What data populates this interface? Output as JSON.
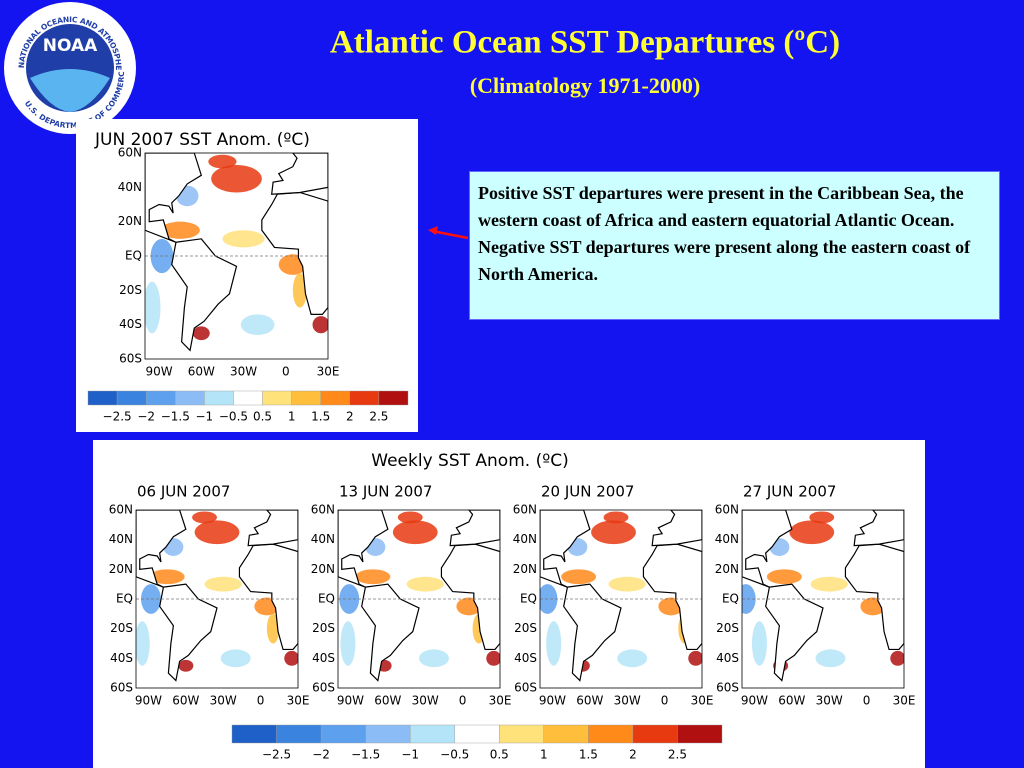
{
  "header": {
    "title": "Atlantic Ocean SST Departures (ºC)",
    "subtitle": "(Climatology 1971-2000)"
  },
  "logo": {
    "text": "NOAA",
    "ring_top": "NATIONAL OCEANIC AND ATMOSPHERIC ADMINISTRATION",
    "ring_bottom": "U.S. DEPARTMENT OF COMMERCE"
  },
  "monthly_map": {
    "title": "JUN 2007 SST Anom. (ºC)",
    "lat_labels": [
      "60N",
      "40N",
      "20N",
      "EQ",
      "20S",
      "40S",
      "60S"
    ],
    "lon_labels": [
      "90W",
      "60W",
      "30W",
      "0",
      "30E"
    ],
    "colorbar_labels": [
      "−2.5",
      "−2",
      "−1.5",
      "−1",
      "−0.5",
      "0.5",
      "1",
      "1.5",
      "2",
      "2.5"
    ]
  },
  "note": {
    "text": "Positive SST departures were present in the Caribbean Sea, the western coast of Africa and eastern equatorial Atlantic Ocean.  Negative SST departures were present along the eastern coast of North America."
  },
  "weekly_maps": {
    "title": "Weekly SST Anom. (ºC)",
    "panels": [
      {
        "title": "06 JUN 2007"
      },
      {
        "title": "13 JUN 2007"
      },
      {
        "title": "20 JUN 2007"
      },
      {
        "title": "27 JUN 2007"
      }
    ],
    "lat_labels": [
      "60N",
      "40N",
      "20N",
      "EQ",
      "20S",
      "40S",
      "60S"
    ],
    "lon_labels": [
      "90W",
      "60W",
      "30W",
      "0",
      "30E"
    ],
    "colorbar_labels": [
      "−2.5",
      "−2",
      "−1.5",
      "−1",
      "−0.5",
      "0.5",
      "1",
      "1.5",
      "2",
      "2.5"
    ]
  }
}
